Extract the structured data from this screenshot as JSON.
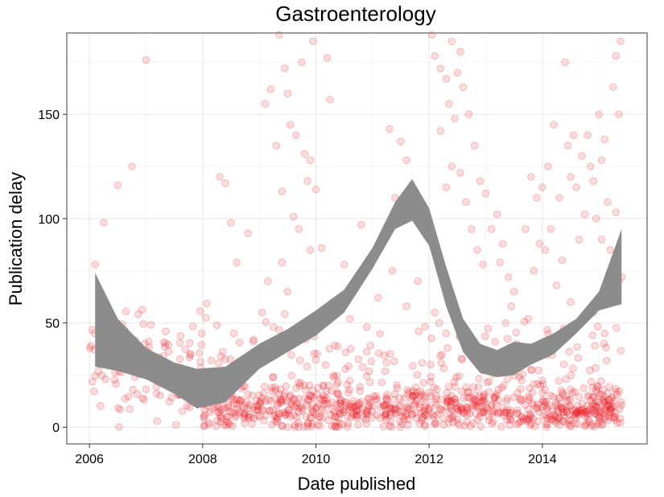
{
  "chart_data": {
    "type": "scatter",
    "title": "Gastroenterology",
    "xlabel": "Date published",
    "ylabel": "Publication delay",
    "xlim": [
      2005.6,
      2015.85
    ],
    "ylim": [
      -8,
      189
    ],
    "x_ticks": [
      2006,
      2008,
      2010,
      2012,
      2014
    ],
    "x_tick_labels": [
      "2006",
      "2008",
      "2010",
      "2012",
      "2014"
    ],
    "y_ticks": [
      0,
      50,
      100,
      150
    ],
    "y_tick_labels": [
      "0",
      "50",
      "100",
      "150"
    ],
    "grid": true,
    "legend": "none",
    "colors": {
      "points": "#e8141c",
      "band": "#8c8c8c",
      "grid": "#ebebeb",
      "frame": "#7f7f7f"
    },
    "point_opacity": 0.15,
    "point_clusters": [
      {
        "x_range": [
          2006.0,
          2008.0
        ],
        "y_center": 28,
        "y_spread": 12,
        "count": 140
      },
      {
        "x_range": [
          2008.0,
          2015.4
        ],
        "y_center": 9,
        "y_spread": 5,
        "count": 700
      },
      {
        "x_range": [
          2008.0,
          2015.4
        ],
        "y_center": 25,
        "y_spread": 15,
        "count": 250
      }
    ],
    "sparse_points": [
      [
        2007.0,
        176
      ],
      [
        2006.5,
        116
      ],
      [
        2006.75,
        125
      ],
      [
        2006.25,
        98
      ],
      [
        2006.1,
        78
      ],
      [
        2008.4,
        117
      ],
      [
        2008.5,
        98
      ],
      [
        2008.6,
        79
      ],
      [
        2008.8,
        93
      ],
      [
        2008.3,
        120
      ],
      [
        2009.1,
        155
      ],
      [
        2009.2,
        162
      ],
      [
        2009.35,
        188
      ],
      [
        2009.45,
        172
      ],
      [
        2009.5,
        160
      ],
      [
        2009.55,
        145
      ],
      [
        2009.65,
        140
      ],
      [
        2009.75,
        175
      ],
      [
        2009.8,
        131
      ],
      [
        2009.9,
        128
      ],
      [
        2009.3,
        135
      ],
      [
        2009.4,
        113
      ],
      [
        2009.6,
        101
      ],
      [
        2009.85,
        118
      ],
      [
        2009.95,
        185
      ],
      [
        2010.2,
        177
      ],
      [
        2010.25,
        157
      ],
      [
        2010.0,
        114
      ],
      [
        2009.7,
        95
      ],
      [
        2009.9,
        85
      ],
      [
        2009.4,
        79
      ],
      [
        2009.15,
        70
      ],
      [
        2010.1,
        86
      ],
      [
        2010.5,
        78
      ],
      [
        2010.8,
        97
      ],
      [
        2011.3,
        143
      ],
      [
        2011.5,
        137
      ],
      [
        2011.6,
        128
      ],
      [
        2011.4,
        110
      ],
      [
        2011.2,
        90
      ],
      [
        2012.05,
        188
      ],
      [
        2012.1,
        178
      ],
      [
        2012.2,
        172
      ],
      [
        2012.3,
        167
      ],
      [
        2012.4,
        185
      ],
      [
        2012.5,
        170
      ],
      [
        2012.45,
        148
      ],
      [
        2012.6,
        163
      ],
      [
        2012.2,
        142
      ],
      [
        2012.35,
        155
      ],
      [
        2012.55,
        180
      ],
      [
        2012.7,
        150
      ],
      [
        2012.8,
        135
      ],
      [
        2012.4,
        125
      ],
      [
        2012.55,
        122
      ],
      [
        2012.65,
        108
      ],
      [
        2012.3,
        115
      ],
      [
        2012.9,
        118
      ],
      [
        2013.0,
        112
      ],
      [
        2012.75,
        95
      ],
      [
        2012.85,
        85
      ],
      [
        2013.1,
        95
      ],
      [
        2013.2,
        102
      ],
      [
        2013.3,
        88
      ],
      [
        2013.4,
        72
      ],
      [
        2013.5,
        65
      ],
      [
        2013.45,
        58
      ],
      [
        2013.25,
        79
      ],
      [
        2012.95,
        78
      ],
      [
        2013.35,
        50
      ],
      [
        2013.7,
        95
      ],
      [
        2013.8,
        120
      ],
      [
        2013.9,
        110
      ],
      [
        2014.0,
        115
      ],
      [
        2014.1,
        125
      ],
      [
        2014.2,
        145
      ],
      [
        2014.3,
        110
      ],
      [
        2014.4,
        175
      ],
      [
        2014.45,
        135
      ],
      [
        2014.5,
        120
      ],
      [
        2014.55,
        140
      ],
      [
        2014.6,
        115
      ],
      [
        2014.7,
        130
      ],
      [
        2014.8,
        140
      ],
      [
        2014.85,
        125
      ],
      [
        2014.9,
        118
      ],
      [
        2014.95,
        100
      ],
      [
        2015.0,
        150
      ],
      [
        2015.05,
        128
      ],
      [
        2015.1,
        138
      ],
      [
        2015.15,
        108
      ],
      [
        2015.2,
        85
      ],
      [
        2015.25,
        163
      ],
      [
        2015.3,
        178
      ],
      [
        2015.35,
        150
      ],
      [
        2015.38,
        185
      ],
      [
        2015.4,
        72
      ],
      [
        2015.3,
        103
      ],
      [
        2014.65,
        90
      ],
      [
        2014.35,
        80
      ],
      [
        2014.15,
        95
      ],
      [
        2013.95,
        88
      ],
      [
        2013.85,
        75
      ],
      [
        2014.75,
        102
      ],
      [
        2015.05,
        90
      ],
      [
        2013.6,
        35
      ],
      [
        2013.75,
        52
      ],
      [
        2013.55,
        40
      ],
      [
        2014.25,
        68
      ],
      [
        2014.5,
        60
      ],
      [
        2014.9,
        55
      ],
      [
        2015.1,
        45
      ],
      [
        2015.2,
        65
      ],
      [
        2015.35,
        70
      ],
      [
        2014.05,
        85
      ],
      [
        2008.15,
        32
      ],
      [
        2008.55,
        45
      ],
      [
        2008.9,
        42
      ],
      [
        2009.05,
        55
      ],
      [
        2009.25,
        48
      ],
      [
        2009.5,
        65
      ],
      [
        2010.3,
        60
      ],
      [
        2010.6,
        52
      ],
      [
        2010.9,
        48
      ],
      [
        2011.1,
        62
      ],
      [
        2011.35,
        75
      ],
      [
        2011.6,
        58
      ],
      [
        2011.8,
        70
      ],
      [
        2012.1,
        55
      ],
      [
        2012.3,
        45
      ]
    ],
    "band": {
      "x": [
        2006.1,
        2006.5,
        2007.0,
        2007.5,
        2007.9,
        2008.4,
        2009.0,
        2009.5,
        2010.0,
        2010.5,
        2011.0,
        2011.4,
        2011.7,
        2012.0,
        2012.3,
        2012.6,
        2012.9,
        2013.2,
        2013.5,
        2013.8,
        2014.2,
        2014.6,
        2015.0,
        2015.4
      ],
      "upper": [
        74,
        52,
        38,
        31,
        28,
        29,
        40,
        47,
        56,
        66,
        86,
        108,
        119,
        105,
        77,
        52,
        40,
        37,
        41,
        40,
        45,
        52,
        65,
        95
      ],
      "lower": [
        29,
        27,
        23,
        16,
        9,
        12,
        28,
        36,
        44,
        55,
        76,
        95,
        99,
        87,
        58,
        36,
        26,
        24,
        25,
        30,
        35,
        45,
        56,
        59
      ]
    }
  }
}
